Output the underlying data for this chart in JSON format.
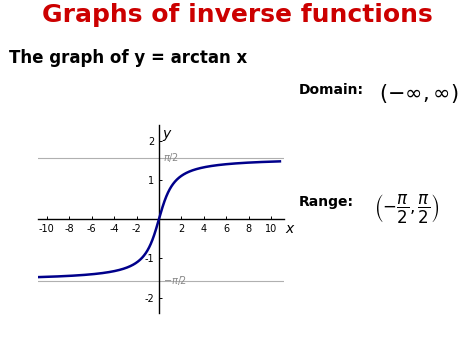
{
  "title": "Graphs of inverse functions",
  "title_color": "#cc0000",
  "title_fontsize": 18,
  "subtitle": "The graph of y = arctan x",
  "subtitle_fontsize": 12,
  "background_color": "#ffffff",
  "curve_color": "#00008b",
  "curve_linewidth": 1.8,
  "xlim": [
    -10.8,
    11.2
  ],
  "ylim": [
    -2.4,
    2.4
  ],
  "xticks": [
    -10,
    -8,
    -6,
    -4,
    -2,
    2,
    4,
    6,
    8,
    10
  ],
  "yticks": [
    -2,
    -1,
    1,
    2
  ],
  "axis_label_x": "x",
  "axis_label_y": "y",
  "pi_over_2": 1.5707963267948966,
  "asymptote_color": "#b0b0b0",
  "domain_label": "Domain:",
  "range_label": "Range:"
}
